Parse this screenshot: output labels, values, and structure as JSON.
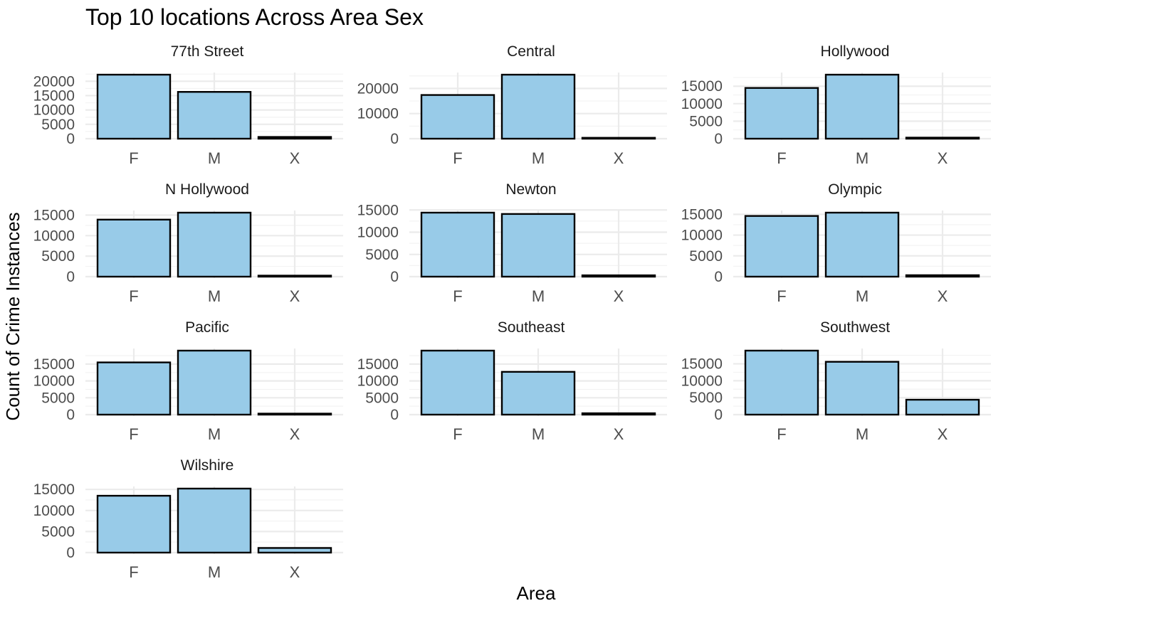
{
  "chart_data": {
    "type": "bar",
    "title": "Top 10 locations Across Area Sex",
    "xlabel": "Area",
    "ylabel": "Count of Crime Instances",
    "categories": [
      "F",
      "M",
      "X"
    ],
    "layout": "facet-wrap 3 columns, free y scales",
    "grid": true,
    "panels": [
      {
        "name": "77th Street",
        "values": [
          22300,
          16300,
          600
        ],
        "ylim": [
          0,
          22300
        ],
        "yticks": [
          0,
          5000,
          10000,
          15000,
          20000
        ],
        "ytick_labels": [
          "0",
          "5000",
          "10000",
          "15000",
          "20000"
        ]
      },
      {
        "name": "Central",
        "values": [
          17400,
          25500,
          350
        ],
        "ylim": [
          0,
          25500
        ],
        "yticks": [
          0,
          10000,
          20000
        ],
        "ytick_labels": [
          "0",
          "10000",
          "20000"
        ]
      },
      {
        "name": "Hollywood",
        "values": [
          14500,
          18300,
          300
        ],
        "ylim": [
          0,
          18300
        ],
        "yticks": [
          0,
          5000,
          10000,
          15000
        ],
        "ytick_labels": [
          "0",
          "5000",
          "10000",
          "15000"
        ]
      },
      {
        "name": "N Hollywood",
        "values": [
          13900,
          15600,
          250
        ],
        "ylim": [
          0,
          15600
        ],
        "yticks": [
          0,
          5000,
          10000,
          15000
        ],
        "ytick_labels": [
          "0",
          "5000",
          "10000",
          "15000"
        ]
      },
      {
        "name": "Newton",
        "values": [
          14400,
          14100,
          300
        ],
        "ylim": [
          0,
          14400
        ],
        "yticks": [
          0,
          5000,
          10000,
          15000
        ],
        "ytick_labels": [
          "0",
          "5000",
          "10000",
          "15000"
        ]
      },
      {
        "name": "Olympic",
        "values": [
          14600,
          15400,
          350
        ],
        "ylim": [
          0,
          15400
        ],
        "yticks": [
          0,
          5000,
          10000,
          15000
        ],
        "ytick_labels": [
          "0",
          "5000",
          "10000",
          "15000"
        ]
      },
      {
        "name": "Pacific",
        "values": [
          15500,
          19000,
          300
        ],
        "ylim": [
          0,
          19000
        ],
        "yticks": [
          0,
          5000,
          10000,
          15000
        ],
        "ytick_labels": [
          "0",
          "5000",
          "10000",
          "15000"
        ]
      },
      {
        "name": "Southeast",
        "values": [
          19000,
          12700,
          400
        ],
        "ylim": [
          0,
          19000
        ],
        "yticks": [
          0,
          5000,
          10000,
          15000
        ],
        "ytick_labels": [
          "0",
          "5000",
          "10000",
          "15000"
        ]
      },
      {
        "name": "Southwest",
        "values": [
          18900,
          15600,
          4400
        ],
        "ylim": [
          0,
          18900
        ],
        "yticks": [
          0,
          5000,
          10000,
          15000
        ],
        "ytick_labels": [
          "0",
          "5000",
          "10000",
          "15000"
        ]
      },
      {
        "name": "Wilshire",
        "values": [
          13500,
          15200,
          1100
        ],
        "ylim": [
          0,
          15200
        ],
        "yticks": [
          0,
          5000,
          10000,
          15000
        ],
        "ytick_labels": [
          "0",
          "5000",
          "10000",
          "15000"
        ]
      }
    ],
    "colors": {
      "bar_fill": "#98cbe8",
      "bar_stroke": "#000000",
      "grid": "#ebebeb"
    }
  }
}
